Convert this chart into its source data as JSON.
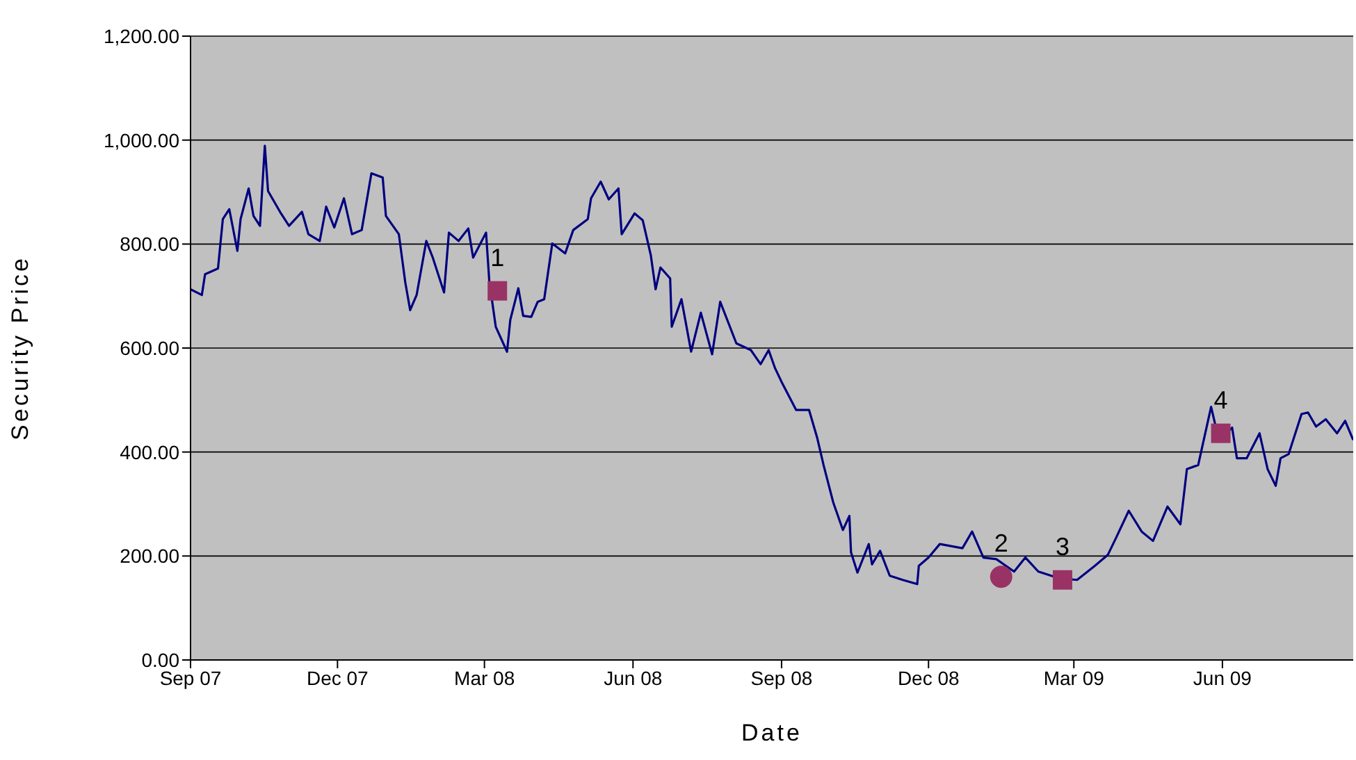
{
  "chart_data": {
    "type": "line",
    "xlabel": "Date",
    "ylabel": "Security Price",
    "xlim": [
      "2007-09-01",
      "2009-08-21"
    ],
    "ylim": [
      0,
      1200
    ],
    "xticks": [
      {
        "value": "2007-09-01",
        "label": "Sep 07"
      },
      {
        "value": "2007-12-01",
        "label": "Dec 07"
      },
      {
        "value": "2008-03-01",
        "label": "Mar 08"
      },
      {
        "value": "2008-06-01",
        "label": "Jun 08"
      },
      {
        "value": "2008-09-01",
        "label": "Sep 08"
      },
      {
        "value": "2008-12-01",
        "label": "Dec 08"
      },
      {
        "value": "2009-03-01",
        "label": "Mar 09"
      },
      {
        "value": "2009-06-01",
        "label": "Jun 09"
      }
    ],
    "yticks": [
      {
        "value": 0,
        "label": "0.00"
      },
      {
        "value": 200,
        "label": "200.00"
      },
      {
        "value": 400,
        "label": "400.00"
      },
      {
        "value": 600,
        "label": "600.00"
      },
      {
        "value": 800,
        "label": "800.00"
      },
      {
        "value": 1000,
        "label": "1,000.00"
      },
      {
        "value": 1200,
        "label": "1,200.00"
      }
    ],
    "grid": "y",
    "series": [
      {
        "color": "#000080",
        "marker": "none",
        "x": [
          "2007-09-01",
          "2007-09-08",
          "2007-09-10",
          "2007-09-18",
          "2007-09-21",
          "2007-09-25",
          "2007-09-30",
          "2007-10-02",
          "2007-10-07",
          "2007-10-10",
          "2007-10-14",
          "2007-10-17",
          "2007-10-19",
          "2007-10-27",
          "2007-11-01",
          "2007-11-09",
          "2007-11-13",
          "2007-11-20",
          "2007-11-24",
          "2007-11-29",
          "2007-12-05",
          "2007-12-10",
          "2007-12-16",
          "2007-12-22",
          "2007-12-29",
          "2007-12-31",
          "2008-01-08",
          "2008-01-12",
          "2008-01-15",
          "2008-01-19",
          "2008-01-25",
          "2008-01-29",
          "2008-02-05",
          "2008-02-08",
          "2008-02-14",
          "2008-02-20",
          "2008-02-23",
          "2008-03-02",
          "2008-03-04",
          "2008-03-08",
          "2008-03-15",
          "2008-03-17",
          "2008-03-22",
          "2008-03-25",
          "2008-03-30",
          "2008-04-03",
          "2008-04-07",
          "2008-04-12",
          "2008-04-20",
          "2008-04-25",
          "2008-05-04",
          "2008-05-06",
          "2008-05-12",
          "2008-05-17",
          "2008-05-23",
          "2008-05-25",
          "2008-06-02",
          "2008-06-07",
          "2008-06-12",
          "2008-06-15",
          "2008-06-18",
          "2008-06-24",
          "2008-06-25",
          "2008-07-01",
          "2008-07-07",
          "2008-07-13",
          "2008-07-20",
          "2008-07-25",
          "2008-08-04",
          "2008-08-13",
          "2008-08-19",
          "2008-08-24",
          "2008-08-28",
          "2008-09-01",
          "2008-09-10",
          "2008-09-18",
          "2008-09-23",
          "2008-09-27",
          "2008-10-03",
          "2008-10-09",
          "2008-10-13",
          "2008-10-14",
          "2008-10-18",
          "2008-10-25",
          "2008-10-27",
          "2008-11-01",
          "2008-11-07",
          "2008-11-15",
          "2008-11-24",
          "2008-11-25",
          "2008-12-01",
          "2008-12-08",
          "2008-12-22",
          "2008-12-28",
          "2009-01-04",
          "2009-01-12",
          "2009-01-23",
          "2009-01-30",
          "2009-02-07",
          "2009-02-20",
          "2009-03-03",
          "2009-03-14",
          "2009-03-22",
          "2009-03-27",
          "2009-04-04",
          "2009-04-12",
          "2009-04-19",
          "2009-04-28",
          "2009-05-06",
          "2009-05-10",
          "2009-05-17",
          "2009-05-25",
          "2009-05-30",
          "2009-06-07",
          "2009-06-10",
          "2009-06-16",
          "2009-06-24",
          "2009-06-29",
          "2009-07-04",
          "2009-07-07",
          "2009-07-12",
          "2009-07-20",
          "2009-07-24",
          "2009-07-29",
          "2009-08-04",
          "2009-08-11",
          "2009-08-16",
          "2009-08-21"
        ],
        "values": [
          713,
          702,
          742,
          753,
          848,
          867,
          787,
          848,
          907,
          854,
          835,
          989,
          902,
          859,
          835,
          862,
          819,
          806,
          872,
          832,
          888,
          819,
          827,
          936,
          928,
          854,
          819,
          726,
          673,
          702,
          806,
          774,
          707,
          822,
          806,
          830,
          774,
          822,
          729,
          641,
          593,
          654,
          715,
          662,
          660,
          689,
          694,
          801,
          782,
          827,
          848,
          888,
          920,
          886,
          907,
          819,
          859,
          846,
          779,
          713,
          755,
          734,
          641,
          694,
          593,
          668,
          588,
          689,
          609,
          596,
          569,
          596,
          561,
          535,
          481,
          481,
          428,
          375,
          303,
          250,
          277,
          207,
          168,
          223,
          184,
          210,
          162,
          154,
          146,
          181,
          197,
          223,
          215,
          247,
          197,
          194,
          170,
          197,
          170,
          157,
          154,
          181,
          202,
          234,
          287,
          247,
          229,
          295,
          261,
          367,
          375,
          487,
          420,
          447,
          388,
          388,
          436,
          367,
          335,
          388,
          396,
          473,
          476,
          449,
          463,
          436,
          460,
          423
        ]
      },
      {
        "type": "scatter",
        "color": "#993366",
        "marker": "square",
        "x": [
          "2008-03-09",
          "2009-02-22",
          "2009-05-31"
        ],
        "values": [
          710,
          154,
          436
        ]
      },
      {
        "type": "scatter",
        "color": "#993366",
        "marker": "circle",
        "x": [
          "2009-01-15"
        ],
        "values": [
          160
        ]
      }
    ],
    "annotations": [
      {
        "text": "1",
        "x": "2008-03-09",
        "y": 710
      },
      {
        "text": "2",
        "x": "2009-01-15",
        "y": 160
      },
      {
        "text": "3",
        "x": "2009-02-22",
        "y": 154
      },
      {
        "text": "4",
        "x": "2009-05-31",
        "y": 436
      }
    ]
  }
}
